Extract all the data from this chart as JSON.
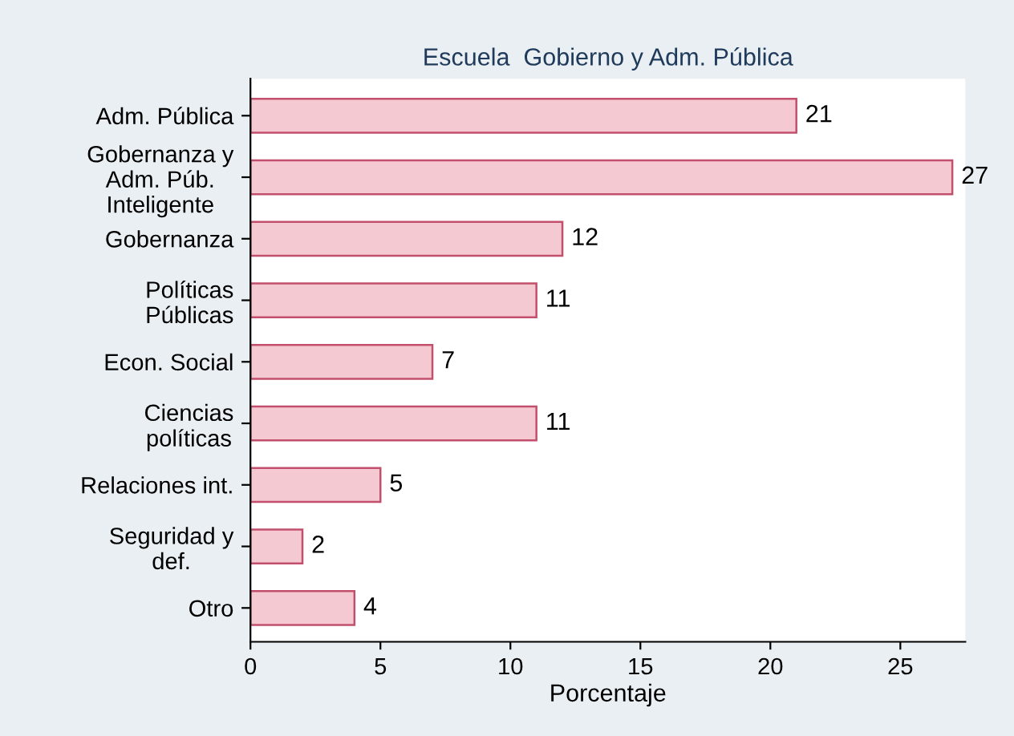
{
  "chart_data": {
    "type": "bar",
    "orientation": "horizontal",
    "title": "Escuela  Gobierno y Adm. Pública",
    "xlabel": "Porcentaje",
    "categories": [
      "Adm. Pública",
      "Gobernanza y\nAdm. Púb.\nInteligente",
      "Gobernanza",
      "Políticas\nPúblicas",
      "Econ. Social",
      "Ciencias\npolíticas",
      "Relaciones int.",
      "Seguridad y\ndef.",
      "Otro"
    ],
    "values": [
      21,
      27,
      12,
      11,
      7,
      11,
      5,
      2,
      4
    ],
    "color": "#f5c9d2",
    "data_labels": true,
    "xlim": [
      0,
      27.5
    ],
    "xticks": [
      0,
      5,
      10,
      15,
      20,
      25
    ],
    "grid": false
  }
}
